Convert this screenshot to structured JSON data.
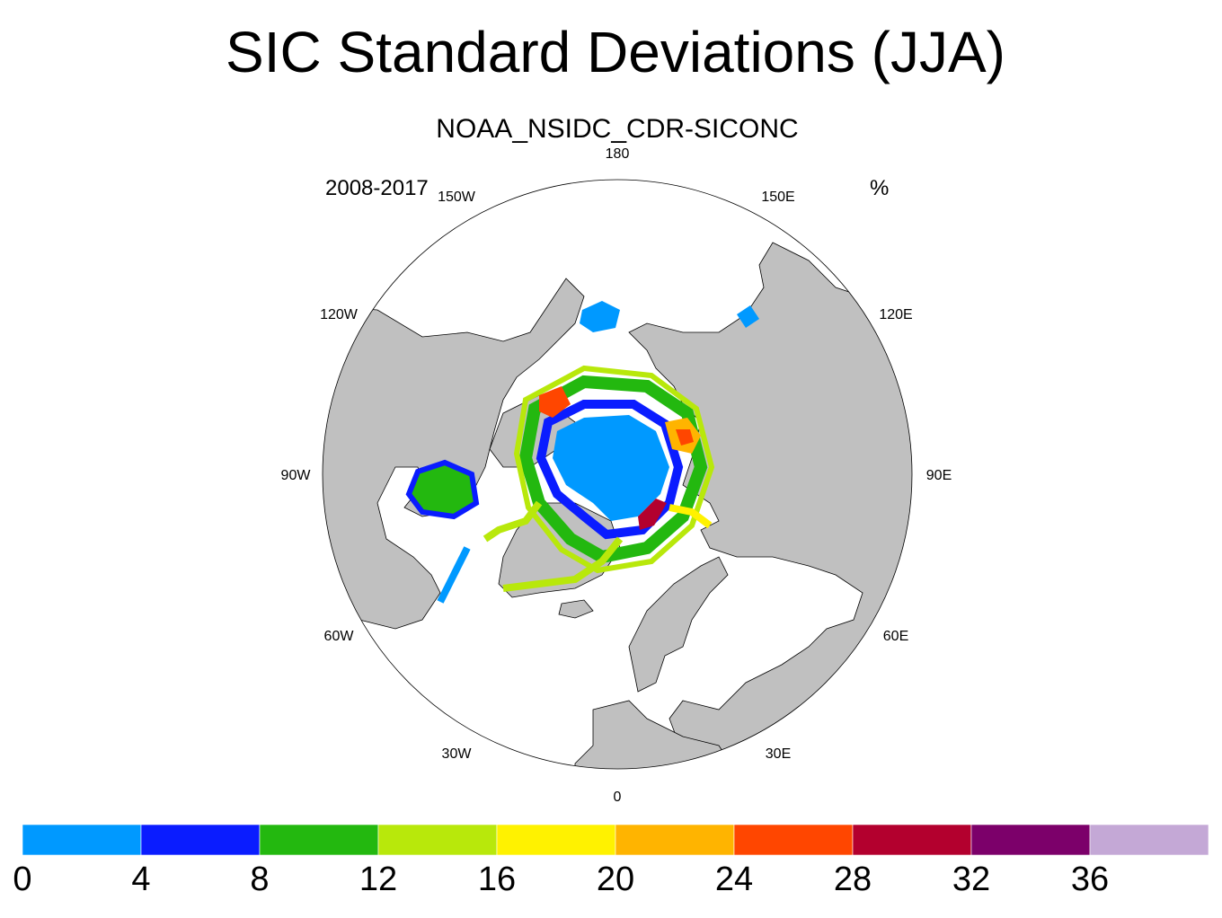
{
  "title": "SIC Standard Deviations (JJA)",
  "subtitle": "NOAA_NSIDC_CDR-SICONC",
  "period": "2008-2017",
  "units": "%",
  "projection": "north-polar-stereographic",
  "land_color": "#c0c0c0",
  "ocean_color": "#ffffff",
  "longitude_labels": [
    "180",
    "150E",
    "120E",
    "90E",
    "60E",
    "30E",
    "0",
    "30W",
    "60W",
    "90W",
    "120W",
    "150W"
  ],
  "colorbar": {
    "ticks": [
      "0",
      "4",
      "8",
      "12",
      "16",
      "20",
      "24",
      "28",
      "32",
      "36"
    ],
    "colors": [
      "#0099ff",
      "#0a1cff",
      "#23b80f",
      "#b8e80b",
      "#fff200",
      "#ffb400",
      "#ff4600",
      "#b3002e",
      "#7c006a",
      "#c4a8d6"
    ]
  }
}
